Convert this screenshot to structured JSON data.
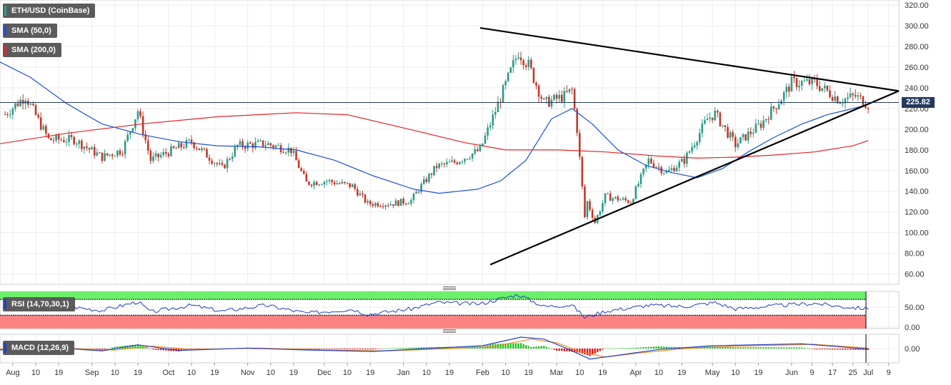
{
  "chart_data": [
    {
      "type": "candlestick",
      "title": "ETH/USD (CoinBase)",
      "x_range": [
        "2019-07-27",
        "2020-07-13"
      ],
      "ylim": [
        50,
        325
      ],
      "y_ticks": [
        "60.00",
        "80.00",
        "100.00",
        "120.00",
        "140.00",
        "160.00",
        "180.00",
        "200.00",
        "220.00",
        "240.00",
        "260.00",
        "280.00",
        "300.00",
        "320.00"
      ],
      "x_tick_labels": [
        "Aug",
        "10",
        "19",
        "Sep",
        "10",
        "19",
        "Oct",
        "10",
        "19",
        "Nov",
        "10",
        "19",
        "Dec",
        "10",
        "19",
        "Jan",
        "10",
        "19",
        "Feb",
        "10",
        "19",
        "Mar",
        "10",
        "19",
        "Apr",
        "10",
        "19",
        "May",
        "10",
        "19",
        "Jun",
        "9",
        "17",
        "25",
        "Jul",
        "9"
      ],
      "current_price": "225.82",
      "close_path": [
        [
          "2019-07-27",
          210
        ],
        [
          "2019-08-06",
          232
        ],
        [
          "2019-08-15",
          190
        ],
        [
          "2019-08-25",
          190
        ],
        [
          "2019-09-05",
          173
        ],
        [
          "2019-09-13",
          180
        ],
        [
          "2019-09-19",
          218
        ],
        [
          "2019-09-24",
          170
        ],
        [
          "2019-10-01",
          178
        ],
        [
          "2019-10-10",
          188
        ],
        [
          "2019-10-22",
          162
        ],
        [
          "2019-10-28",
          184
        ],
        [
          "2019-11-08",
          186
        ],
        [
          "2019-11-18",
          180
        ],
        [
          "2019-11-24",
          148
        ],
        [
          "2019-12-02",
          150
        ],
        [
          "2019-12-12",
          145
        ],
        [
          "2019-12-18",
          128
        ],
        [
          "2019-12-27",
          128
        ],
        [
          "2020-01-04",
          131
        ],
        [
          "2020-01-07",
          142
        ],
        [
          "2020-01-14",
          164
        ],
        [
          "2020-01-21",
          168
        ],
        [
          "2020-01-31",
          180
        ],
        [
          "2020-02-07",
          224
        ],
        [
          "2020-02-15",
          275
        ],
        [
          "2020-02-19",
          262
        ],
        [
          "2020-02-25",
          225
        ],
        [
          "2020-03-04",
          232
        ],
        [
          "2020-03-07",
          238
        ],
        [
          "2020-03-09",
          200
        ],
        [
          "2020-03-12",
          115
        ],
        [
          "2020-03-13",
          130
        ],
        [
          "2020-03-16",
          110
        ],
        [
          "2020-03-20",
          135
        ],
        [
          "2020-03-30",
          130
        ],
        [
          "2020-04-06",
          170
        ],
        [
          "2020-04-13",
          158
        ],
        [
          "2020-04-20",
          170
        ],
        [
          "2020-04-29",
          210
        ],
        [
          "2020-05-02",
          215
        ],
        [
          "2020-05-10",
          185
        ],
        [
          "2020-05-20",
          205
        ],
        [
          "2020-05-28",
          230
        ],
        [
          "2020-06-01",
          245
        ],
        [
          "2020-06-10",
          245
        ],
        [
          "2020-06-20",
          228
        ],
        [
          "2020-06-26",
          232
        ],
        [
          "2020-07-01",
          224
        ]
      ],
      "series": [
        {
          "name": "SMA (50,0)",
          "color": "#1f4fd8",
          "points": [
            [
              "2019-07-27",
              265
            ],
            [
              "2019-08-08",
              250
            ],
            [
              "2019-08-22",
              225
            ],
            [
              "2019-09-05",
              205
            ],
            [
              "2019-09-20",
              195
            ],
            [
              "2019-10-05",
              188
            ],
            [
              "2019-10-20",
              184
            ],
            [
              "2019-11-05",
              183
            ],
            [
              "2019-11-20",
              180
            ],
            [
              "2019-12-05",
              170
            ],
            [
              "2019-12-20",
              155
            ],
            [
              "2020-01-05",
              142
            ],
            [
              "2020-01-15",
              138
            ],
            [
              "2020-01-30",
              142
            ],
            [
              "2020-02-08",
              150
            ],
            [
              "2020-02-18",
              170
            ],
            [
              "2020-02-28",
              210
            ],
            [
              "2020-03-07",
              220
            ],
            [
              "2020-03-15",
              205
            ],
            [
              "2020-03-25",
              180
            ],
            [
              "2020-04-05",
              165
            ],
            [
              "2020-04-15",
              158
            ],
            [
              "2020-04-25",
              153
            ],
            [
              "2020-05-05",
              162
            ],
            [
              "2020-05-15",
              178
            ],
            [
              "2020-05-25",
              192
            ],
            [
              "2020-06-05",
              205
            ],
            [
              "2020-06-15",
              214
            ],
            [
              "2020-06-25",
              220
            ],
            [
              "2020-07-01",
              224
            ]
          ]
        },
        {
          "name": "SMA (200,0)",
          "color": "#e0262a",
          "points": [
            [
              "2019-07-27",
              186
            ],
            [
              "2019-08-22",
              196
            ],
            [
              "2019-09-20",
              205
            ],
            [
              "2019-10-20",
              212
            ],
            [
              "2019-11-20",
              216
            ],
            [
              "2019-12-10",
              214
            ],
            [
              "2020-01-05",
              199
            ],
            [
              "2020-01-25",
              187
            ],
            [
              "2020-02-10",
              180
            ],
            [
              "2020-03-01",
              180
            ],
            [
              "2020-03-20",
              178
            ],
            [
              "2020-04-10",
              174
            ],
            [
              "2020-04-25",
              172
            ],
            [
              "2020-05-10",
              173
            ],
            [
              "2020-05-25",
              175
            ],
            [
              "2020-06-10",
              178
            ],
            [
              "2020-06-25",
              184
            ],
            [
              "2020-07-01",
              189
            ]
          ]
        }
      ],
      "trendlines": [
        {
          "from": [
            "2020-01-31",
            298
          ],
          "to": [
            "2020-07-13",
            237
          ]
        },
        {
          "from": [
            "2020-02-04",
            69
          ],
          "to": [
            "2020-07-13",
            237
          ]
        }
      ],
      "horizontal_line": 225.82,
      "grid": true,
      "legend_position": "top-left"
    },
    {
      "type": "line",
      "title": "RSI (14,70,30,1)",
      "ylim": [
        -4,
        90
      ],
      "y_ticks": [
        "0.00",
        "50.00"
      ],
      "band_upper": 70,
      "band_lower": 30,
      "band_colors": {
        "upper": "#6cf06c",
        "lower": "#fb8282"
      },
      "series": [
        {
          "name": "RSI",
          "color": "#1f3fc8",
          "points": [
            [
              "2019-07-27",
              52
            ],
            [
              "2019-08-06",
              60
            ],
            [
              "2019-08-15",
              44
            ],
            [
              "2019-08-25",
              50
            ],
            [
              "2019-09-05",
              42
            ],
            [
              "2019-09-19",
              64
            ],
            [
              "2019-09-24",
              38
            ],
            [
              "2019-10-10",
              55
            ],
            [
              "2019-10-22",
              40
            ],
            [
              "2019-11-08",
              55
            ],
            [
              "2019-11-24",
              35
            ],
            [
              "2019-12-12",
              45
            ],
            [
              "2019-12-18",
              32
            ],
            [
              "2020-01-04",
              46
            ],
            [
              "2020-01-14",
              62
            ],
            [
              "2020-01-31",
              58
            ],
            [
              "2020-02-07",
              70
            ],
            [
              "2020-02-15",
              82
            ],
            [
              "2020-02-25",
              52
            ],
            [
              "2020-03-07",
              56
            ],
            [
              "2020-03-12",
              24
            ],
            [
              "2020-03-20",
              40
            ],
            [
              "2020-04-06",
              55
            ],
            [
              "2020-04-20",
              52
            ],
            [
              "2020-05-02",
              62
            ],
            [
              "2020-05-10",
              46
            ],
            [
              "2020-05-28",
              55
            ],
            [
              "2020-06-10",
              60
            ],
            [
              "2020-06-20",
              52
            ],
            [
              "2020-07-01",
              46
            ]
          ]
        }
      ],
      "grid": true
    },
    {
      "type": "macd",
      "title": "MACD (12,26,9)",
      "ylim": [
        -30,
        30
      ],
      "y_ticks": [
        "0.00"
      ],
      "macd_line": [
        [
          "2019-07-27",
          -3
        ],
        [
          "2019-08-12",
          4
        ],
        [
          "2019-09-05",
          -5
        ],
        [
          "2019-09-19",
          8
        ],
        [
          "2019-10-05",
          -4
        ],
        [
          "2019-11-01",
          1
        ],
        [
          "2019-11-24",
          -3
        ],
        [
          "2019-12-20",
          -6
        ],
        [
          "2020-01-10",
          0
        ],
        [
          "2020-02-01",
          6
        ],
        [
          "2020-02-16",
          24
        ],
        [
          "2020-02-25",
          20
        ],
        [
          "2020-03-05",
          0
        ],
        [
          "2020-03-14",
          -22
        ],
        [
          "2020-03-25",
          -14
        ],
        [
          "2020-04-10",
          -2
        ],
        [
          "2020-05-01",
          6
        ],
        [
          "2020-06-05",
          10
        ],
        [
          "2020-07-01",
          -1
        ]
      ],
      "signal_line": [
        [
          "2019-07-27",
          -1
        ],
        [
          "2019-08-15",
          2
        ],
        [
          "2019-09-10",
          -3
        ],
        [
          "2019-09-25",
          5
        ],
        [
          "2019-10-10",
          -2
        ],
        [
          "2019-11-05",
          1
        ],
        [
          "2019-12-01",
          -3
        ],
        [
          "2019-12-25",
          -5
        ],
        [
          "2020-01-15",
          -1
        ],
        [
          "2020-02-05",
          4
        ],
        [
          "2020-02-20",
          20
        ],
        [
          "2020-03-01",
          12
        ],
        [
          "2020-03-10",
          -6
        ],
        [
          "2020-03-20",
          -18
        ],
        [
          "2020-04-01",
          -10
        ],
        [
          "2020-04-20",
          0
        ],
        [
          "2020-05-10",
          5
        ],
        [
          "2020-06-10",
          9
        ],
        [
          "2020-07-01",
          1
        ]
      ],
      "histogram_colors": {
        "positive": "#22c322",
        "negative": "#e01616"
      },
      "grid": true
    }
  ]
}
